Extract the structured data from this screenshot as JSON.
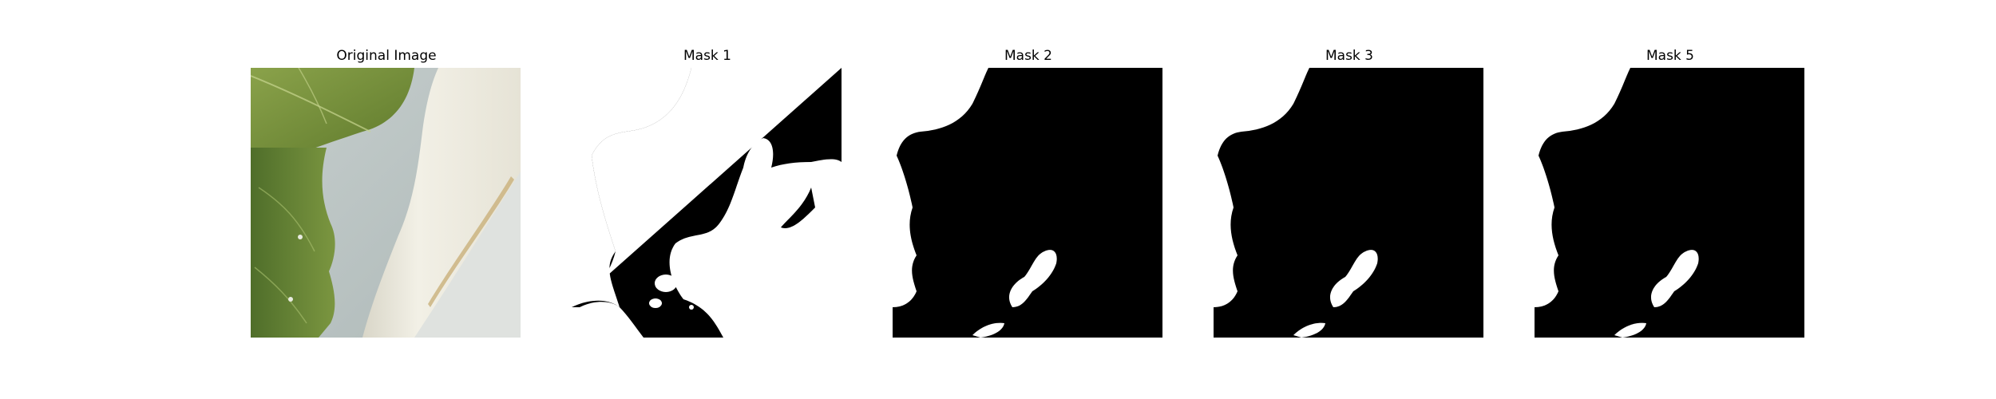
{
  "panels": [
    {
      "title": "Original Image"
    },
    {
      "title": "Mask 1"
    },
    {
      "title": "Mask 2"
    },
    {
      "title": "Mask 3"
    },
    {
      "title": "Mask 5"
    }
  ],
  "colors": {
    "background": "#ffffff",
    "mask_background": "#000000",
    "mask_foreground": "#ffffff",
    "leaf_green": "#6f8a36",
    "water_gray": "#b9c3c2",
    "pipe_white": "#eceadf"
  }
}
